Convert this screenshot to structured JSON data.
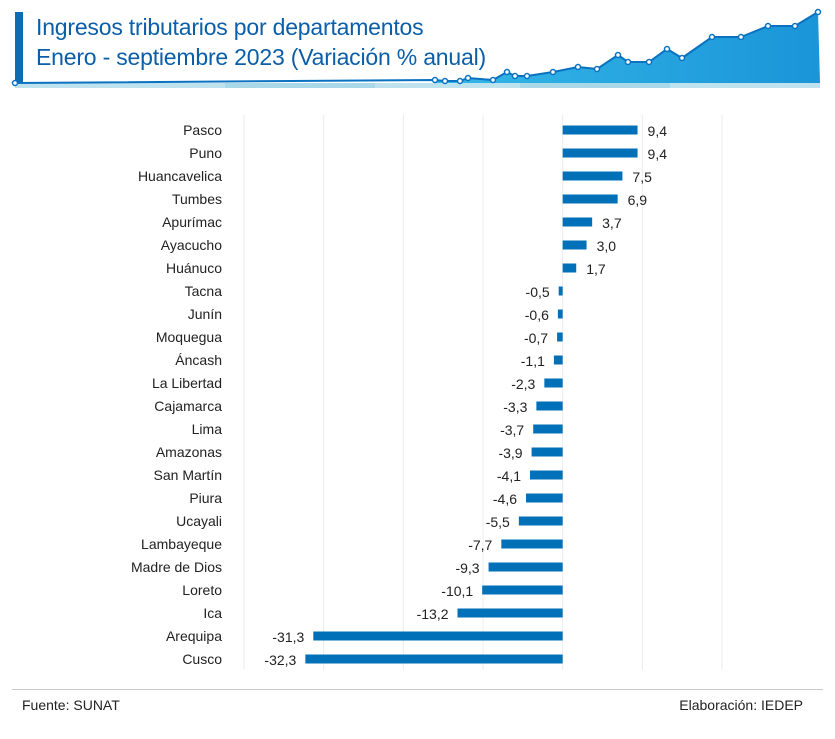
{
  "header": {
    "title_line1": "Ingresos tributarios por departamentos",
    "title_line2": "Enero - septiembre 2023 (Variación % anual)",
    "accent_color": "#0b6db5",
    "decoration": "rising-area-line-graphic"
  },
  "chart_data": {
    "type": "bar",
    "orientation": "horizontal",
    "title": "Ingresos tributarios por departamentos - Enero - septiembre 2023 (Variación % anual)",
    "xlabel": "",
    "ylabel": "",
    "xlim": [
      -40,
      20
    ],
    "grid": true,
    "bar_color": "#0070b8",
    "categories": [
      "Pasco",
      "Puno",
      "Huancavelica",
      "Tumbes",
      "Apurímac",
      "Ayacucho",
      "Huánuco",
      "Tacna",
      "Junín",
      "Moquegua",
      "Áncash",
      "La Libertad",
      "Cajamarca",
      "Lima",
      "Amazonas",
      "San Martín",
      "Piura",
      "Ucayali",
      "Lambayeque",
      "Madre de Dios",
      "Loreto",
      "Ica",
      "Arequipa",
      "Cusco"
    ],
    "values": [
      9.4,
      9.4,
      7.5,
      6.9,
      3.7,
      3.0,
      1.7,
      -0.5,
      -0.6,
      -0.7,
      -1.1,
      -2.3,
      -3.3,
      -3.7,
      -3.9,
      -4.1,
      -4.6,
      -5.5,
      -7.7,
      -9.3,
      -10.1,
      -13.2,
      -31.3,
      -32.3
    ],
    "value_labels": [
      "9,4",
      "9,4",
      "7,5",
      "6,9",
      "3,7",
      "3,0",
      "1,7",
      "-0,5",
      "-0,6",
      "-0,7",
      "-1,1",
      "-2,3",
      "-3,3",
      "-3,7",
      "-3,9",
      "-4,1",
      "-4,6",
      "-5,5",
      "-7,7",
      "-9,3",
      "-10,1",
      "-13,2",
      "-31,3",
      "-32,3"
    ]
  },
  "footer": {
    "source": "Fuente: SUNAT",
    "credit": "Elaboración: IEDEP"
  }
}
